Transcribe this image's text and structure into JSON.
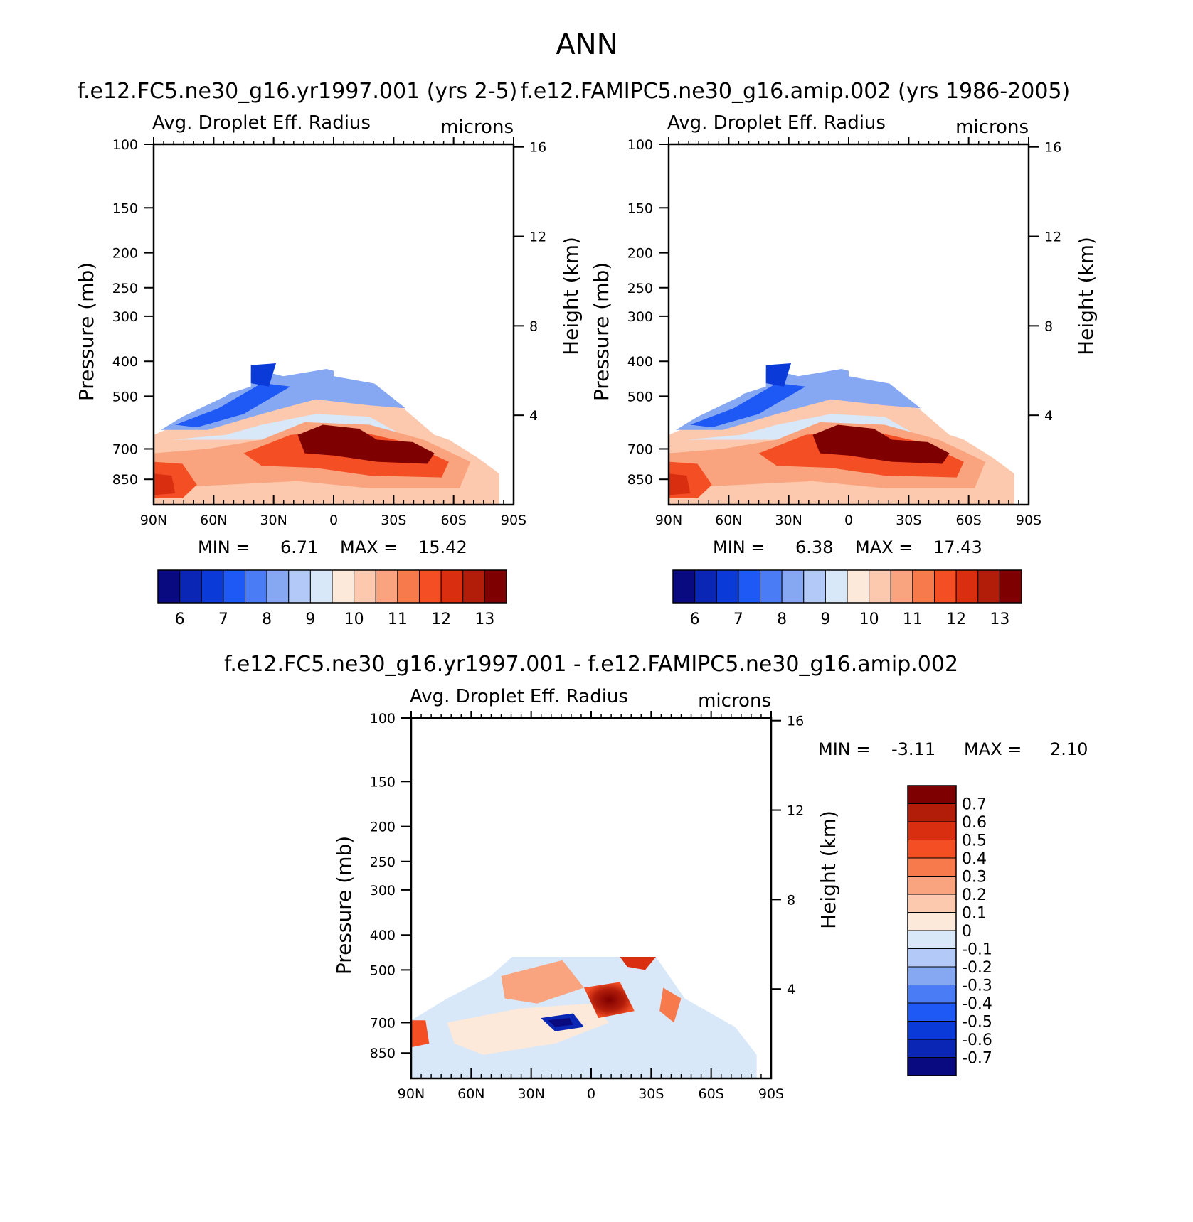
{
  "suptitle": "ANN",
  "chart_data": [
    {
      "type": "heatmap",
      "title": "f.e12.FC5.ne30_g16.yr1997.001 (yrs 2-5)",
      "variable": "Avg. Droplet Eff. Radius",
      "units": "microns",
      "xlabel": "",
      "ylabel": "Pressure (mb)",
      "y2label": "Height (km)",
      "x_ticks": [
        "90N",
        "60N",
        "30N",
        "0",
        "30S",
        "60S",
        "90S"
      ],
      "y_ticks": [
        "100",
        "150",
        "200",
        "250",
        "300",
        "400",
        "500",
        "700",
        "850"
      ],
      "y2_ticks": [
        "16",
        "12",
        "8",
        "4"
      ],
      "min_label": "MIN =",
      "min_value": "6.71",
      "max_label": "MAX =",
      "max_value": "15.42",
      "colorbar": {
        "orientation": "horizontal",
        "labels": [
          "6",
          "7",
          "8",
          "9",
          "10",
          "11",
          "12",
          "13"
        ],
        "colors": [
          "#0a0a80",
          "#0a26b4",
          "#0a3ad8",
          "#1e58f5",
          "#4a7df5",
          "#86a8f3",
          "#b3c9f8",
          "#d8e8f9",
          "#fde9da",
          "#fcc9ae",
          "#f9a47e",
          "#f77a4d",
          "#f44e24",
          "#d92e10",
          "#b21d0a",
          "#7f0000"
        ]
      },
      "grid": false
    },
    {
      "type": "heatmap",
      "title": "f.e12.FAMIPC5.ne30_g16.amip.002 (yrs 1986-2005)",
      "variable": "Avg. Droplet Eff. Radius",
      "units": "microns",
      "xlabel": "",
      "ylabel": "Pressure (mb)",
      "y2label": "Height (km)",
      "x_ticks": [
        "90N",
        "60N",
        "30N",
        "0",
        "30S",
        "60S",
        "90S"
      ],
      "y_ticks": [
        "100",
        "150",
        "200",
        "250",
        "300",
        "400",
        "500",
        "700",
        "850"
      ],
      "y2_ticks": [
        "16",
        "12",
        "8",
        "4"
      ],
      "min_label": "MIN =",
      "min_value": "6.38",
      "max_label": "MAX =",
      "max_value": "17.43",
      "colorbar": {
        "orientation": "horizontal",
        "labels": [
          "6",
          "7",
          "8",
          "9",
          "10",
          "11",
          "12",
          "13"
        ],
        "colors": [
          "#0a0a80",
          "#0a26b4",
          "#0a3ad8",
          "#1e58f5",
          "#4a7df5",
          "#86a8f3",
          "#b3c9f8",
          "#d8e8f9",
          "#fde9da",
          "#fcc9ae",
          "#f9a47e",
          "#f77a4d",
          "#f44e24",
          "#d92e10",
          "#b21d0a",
          "#7f0000"
        ]
      },
      "grid": false
    },
    {
      "type": "heatmap",
      "title": "f.e12.FC5.ne30_g16.yr1997.001 - f.e12.FAMIPC5.ne30_g16.amip.002",
      "variable": "Avg. Droplet Eff. Radius",
      "units": "microns",
      "xlabel": "",
      "ylabel": "Pressure (mb)",
      "y2label": "Height (km)",
      "x_ticks": [
        "90N",
        "60N",
        "30N",
        "0",
        "30S",
        "60S",
        "90S"
      ],
      "y_ticks": [
        "100",
        "150",
        "200",
        "250",
        "300",
        "400",
        "500",
        "700",
        "850"
      ],
      "y2_ticks": [
        "16",
        "12",
        "8",
        "4"
      ],
      "min_label": "MIN =",
      "min_value": "-3.11",
      "max_label": "MAX =",
      "max_value": "2.10",
      "colorbar": {
        "orientation": "vertical",
        "labels": [
          "0.7",
          "0.6",
          "0.5",
          "0.4",
          "0.3",
          "0.2",
          "0.1",
          "0",
          "-0.1",
          "-0.2",
          "-0.3",
          "-0.4",
          "-0.5",
          "-0.6",
          "-0.7"
        ],
        "colors": [
          "#7f0000",
          "#b21d0a",
          "#d92e10",
          "#f44e24",
          "#f77a4d",
          "#f9a47e",
          "#fcc9ae",
          "#fde9da",
          "#d8e8f9",
          "#b3c9f8",
          "#86a8f3",
          "#4a7df5",
          "#1e58f5",
          "#0a3ad8",
          "#0a26b4",
          "#0a0a80"
        ]
      },
      "grid": false
    }
  ]
}
